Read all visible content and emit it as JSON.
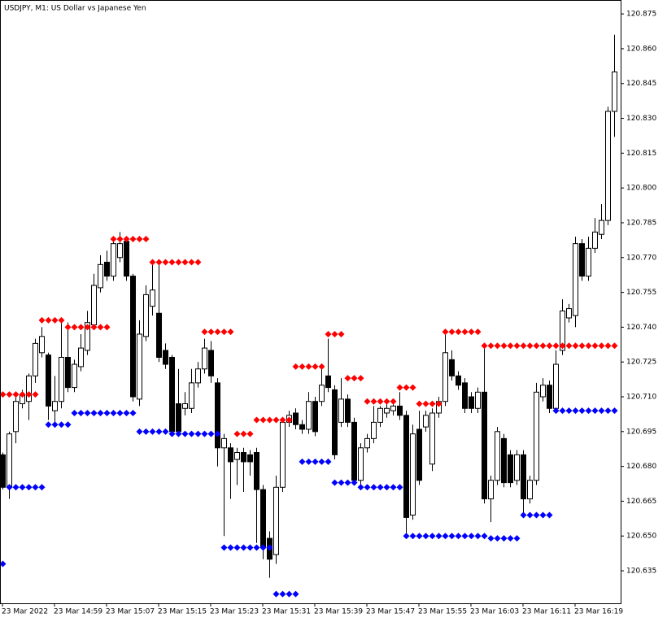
{
  "chart_data": {
    "type": "candlestick",
    "title": "USDJPY, M1:  US Dollar vs Japanese Yen",
    "categories": [
      "23 Mar 2022",
      null,
      null,
      null,
      null,
      null,
      null,
      null,
      "23 Mar 14:59",
      null,
      null,
      null,
      null,
      null,
      null,
      null,
      "23 Mar 15:07",
      null,
      null,
      null,
      null,
      null,
      null,
      null,
      "23 Mar 15:15",
      null,
      null,
      null,
      null,
      null,
      null,
      null,
      "23 Mar 15:23",
      null,
      null,
      null,
      null,
      null,
      null,
      null,
      "23 Mar 15:31",
      null,
      null,
      null,
      null,
      null,
      null,
      null,
      "23 Mar 15:39",
      null,
      null,
      null,
      null,
      null,
      null,
      null,
      "23 Mar 15:47",
      null,
      null,
      null,
      null,
      null,
      null,
      null,
      "23 Mar 15:55",
      null,
      null,
      null,
      null,
      null,
      null,
      null,
      "23 Mar 16:03",
      null,
      null,
      null,
      null,
      null,
      null,
      null,
      "23 Mar 16:11",
      null,
      null,
      null,
      null,
      null,
      null,
      null,
      "23 Mar 16:19",
      null,
      null,
      null,
      null,
      null,
      null
    ],
    "open": [
      120.685,
      120.671,
      120.695,
      120.707,
      120.708,
      120.719,
      120.729,
      120.728,
      120.704,
      120.708,
      120.727,
      120.714,
      120.723,
      120.73,
      120.741,
      120.757,
      120.768,
      120.762,
      120.77,
      120.777,
      120.762,
      120.709,
      120.736,
      120.749,
      120.746,
      120.73,
      120.727,
      120.707,
      120.705,
      120.705,
      120.716,
      120.722,
      120.73,
      120.716,
      120.688,
      120.688,
      120.683,
      120.686,
      120.685,
      120.686,
      120.67,
      120.649,
      120.642,
      120.671,
      120.699,
      120.703,
      120.698,
      120.696,
      120.708,
      120.708,
      120.719,
      120.713,
      120.699,
      120.709,
      120.699,
      120.674,
      120.688,
      120.692,
      120.699,
      120.703,
      120.704,
      120.706,
      120.702,
      120.659,
      120.696,
      120.697,
      120.681,
      120.703,
      120.708,
      120.726,
      120.719,
      120.716,
      120.71,
      120.705,
      120.712,
      120.666,
      120.674,
      120.692,
      120.685,
      120.674,
      120.685,
      120.666,
      120.674,
      120.71,
      120.715,
      120.705,
      120.73,
      120.744,
      120.745,
      120.776,
      120.762,
      120.774,
      120.78,
      120.786,
      120.833
    ],
    "high": [
      120.686,
      120.695,
      120.712,
      120.713,
      120.72,
      120.735,
      120.74,
      120.729,
      120.719,
      120.742,
      120.742,
      120.726,
      120.737,
      120.747,
      120.763,
      120.771,
      120.773,
      120.779,
      120.781,
      120.779,
      120.763,
      120.743,
      120.758,
      120.768,
      120.768,
      120.733,
      120.728,
      120.722,
      120.712,
      120.722,
      120.725,
      120.735,
      120.734,
      120.718,
      120.694,
      120.69,
      120.688,
      120.688,
      120.687,
      120.688,
      120.672,
      120.652,
      120.676,
      120.7,
      120.704,
      120.705,
      120.7,
      120.712,
      120.71,
      120.722,
      120.735,
      120.715,
      120.718,
      120.711,
      120.701,
      120.69,
      120.694,
      120.706,
      120.706,
      120.707,
      120.707,
      120.712,
      120.704,
      120.698,
      120.704,
      120.704,
      120.705,
      120.71,
      120.738,
      120.73,
      120.721,
      120.718,
      120.712,
      120.714,
      120.732,
      120.676,
      120.697,
      120.694,
      120.687,
      120.687,
      120.687,
      120.676,
      120.716,
      120.718,
      120.717,
      120.73,
      120.752,
      120.75,
      120.779,
      120.778,
      120.779,
      120.787,
      120.793,
      120.835,
      120.866
    ],
    "low": [
      120.67,
      120.666,
      120.69,
      120.705,
      120.7,
      120.716,
      120.727,
      120.7,
      120.698,
      120.705,
      120.712,
      120.712,
      120.721,
      120.728,
      120.739,
      120.755,
      120.76,
      120.76,
      120.768,
      120.76,
      120.708,
      120.706,
      120.734,
      120.745,
      120.725,
      120.722,
      120.693,
      120.693,
      120.702,
      120.703,
      120.714,
      120.72,
      120.716,
      120.68,
      120.65,
      120.666,
      120.672,
      120.669,
      120.676,
      120.647,
      120.64,
      120.632,
      120.638,
      120.669,
      120.697,
      120.696,
      120.694,
      120.694,
      120.693,
      120.706,
      120.712,
      120.683,
      120.697,
      120.697,
      120.672,
      120.672,
      120.686,
      120.69,
      120.697,
      120.701,
      120.702,
      120.7,
      120.65,
      120.657,
      120.672,
      120.695,
      120.678,
      120.701,
      120.706,
      120.717,
      120.713,
      120.703,
      120.703,
      120.703,
      120.664,
      120.656,
      120.672,
      120.671,
      120.671,
      120.672,
      120.66,
      120.664,
      120.672,
      120.708,
      120.703,
      120.703,
      120.728,
      120.742,
      120.74,
      120.76,
      120.76,
      120.772,
      120.778,
      120.784,
      120.822
    ],
    "close": [
      120.671,
      120.694,
      120.708,
      120.711,
      120.719,
      120.733,
      120.736,
      120.706,
      120.708,
      120.727,
      120.714,
      120.724,
      120.731,
      120.742,
      120.758,
      120.767,
      120.762,
      120.776,
      120.776,
      120.762,
      120.71,
      120.737,
      120.754,
      120.756,
      120.727,
      120.724,
      120.695,
      120.695,
      120.707,
      120.716,
      120.722,
      120.731,
      120.719,
      120.688,
      120.692,
      120.682,
      120.686,
      120.682,
      120.682,
      120.67,
      120.645,
      120.64,
      120.671,
      120.699,
      120.702,
      120.698,
      120.696,
      120.708,
      120.695,
      120.715,
      120.714,
      120.685,
      120.709,
      120.699,
      120.674,
      120.688,
      120.692,
      120.699,
      120.705,
      120.705,
      120.706,
      120.702,
      120.658,
      120.694,
      120.674,
      120.702,
      120.703,
      120.708,
      120.729,
      120.719,
      120.715,
      120.705,
      120.705,
      120.712,
      120.666,
      120.674,
      120.695,
      120.673,
      120.673,
      120.685,
      120.666,
      120.674,
      120.712,
      120.715,
      120.705,
      120.724,
      120.747,
      120.748,
      120.776,
      120.762,
      120.774,
      120.781,
      120.786,
      120.833,
      120.85
    ],
    "up_color": "#ffffff",
    "down_color": "#000000",
    "wick_color": "#000000",
    "dots": [
      {
        "color": "#ff0000",
        "values": [
          120.711,
          120.711,
          120.711,
          120.711,
          120.711,
          120.711,
          120.743,
          120.743,
          120.743,
          120.743,
          120.74,
          120.74,
          120.74,
          120.74,
          120.74,
          120.74,
          120.74,
          120.778,
          120.778,
          120.778,
          120.778,
          120.778,
          120.778,
          120.768,
          120.768,
          120.768,
          120.768,
          120.768,
          120.768,
          120.768,
          120.768,
          120.738,
          120.738,
          120.738,
          120.738,
          120.738,
          120.694,
          120.694,
          120.694,
          120.7,
          120.7,
          120.7,
          120.7,
          120.7,
          120.7,
          120.723,
          120.723,
          120.723,
          120.723,
          120.723,
          120.737,
          120.737,
          120.737,
          120.718,
          120.718,
          120.718,
          120.708,
          120.708,
          120.708,
          120.708,
          120.708,
          120.714,
          120.714,
          120.714,
          120.707,
          120.707,
          120.707,
          120.707,
          120.738,
          120.738,
          120.738,
          120.738,
          120.738,
          120.738,
          120.732,
          120.732,
          120.732,
          120.732,
          120.732,
          120.732,
          120.732,
          120.732,
          120.732,
          120.732,
          120.732,
          120.732,
          120.732,
          120.732,
          120.732,
          120.732,
          120.732,
          120.732,
          120.732,
          120.732,
          120.732
        ]
      },
      {
        "color": "#0000ff",
        "values": [
          120.638,
          120.671,
          120.671,
          120.671,
          120.671,
          120.671,
          120.671,
          120.698,
          120.698,
          120.698,
          120.698,
          120.703,
          120.703,
          120.703,
          120.703,
          120.703,
          120.703,
          120.703,
          120.703,
          120.703,
          120.703,
          120.695,
          120.695,
          120.695,
          120.695,
          120.695,
          120.694,
          120.694,
          120.694,
          120.694,
          120.694,
          120.694,
          120.694,
          120.694,
          120.645,
          120.645,
          120.645,
          120.645,
          120.645,
          120.645,
          120.645,
          120.645,
          120.625,
          120.625,
          120.625,
          120.625,
          120.682,
          120.682,
          120.682,
          120.682,
          120.682,
          120.673,
          120.673,
          120.673,
          120.673,
          120.671,
          120.671,
          120.671,
          120.671,
          120.671,
          120.671,
          120.671,
          120.65,
          120.65,
          120.65,
          120.65,
          120.65,
          120.65,
          120.65,
          120.65,
          120.65,
          120.65,
          120.65,
          120.65,
          120.65,
          120.649,
          120.649,
          120.649,
          120.649,
          120.649,
          120.659,
          120.659,
          120.659,
          120.659,
          120.659,
          120.704,
          120.704,
          120.704,
          120.704,
          120.704,
          120.704,
          120.704,
          120.704,
          120.704,
          120.704
        ]
      }
    ],
    "ylim": [
      120.621,
      120.881
    ],
    "yticks": [
      120.875,
      {
        "value": 120.86,
        "label": "120.860"
      },
      120.845,
      {
        "value": 120.83,
        "label": "120.830"
      },
      120.815,
      {
        "value": 120.8,
        "label": "120.800"
      },
      120.785,
      {
        "value": 120.77,
        "label": "120.770"
      },
      120.755,
      {
        "value": 120.74,
        "label": "120.740"
      },
      120.725,
      {
        "value": 120.71,
        "label": "120.710"
      },
      120.695,
      {
        "value": 120.68,
        "label": "120.680"
      },
      120.665,
      {
        "value": 120.65,
        "label": "120.650"
      },
      120.635
    ]
  }
}
